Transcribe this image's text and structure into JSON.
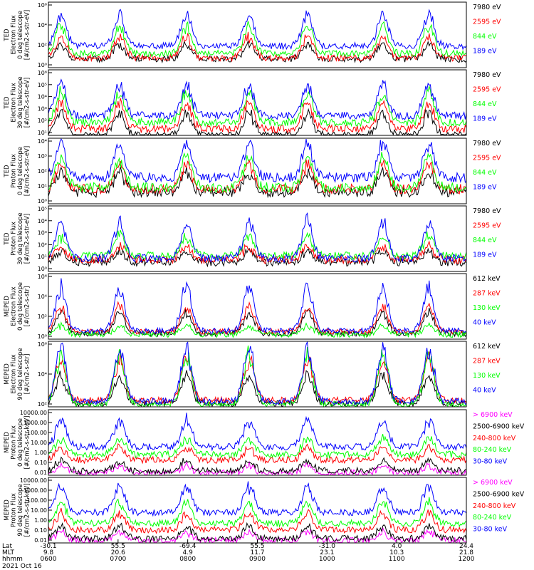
{
  "colors": {
    "black": "#000000",
    "blue": "#0000ff",
    "red": "#ff0000",
    "green": "#00ff00",
    "magenta": "#ff00ff"
  },
  "chart_data": [
    {
      "type": "line",
      "log_scale": true,
      "ylabel": [
        "TED",
        "Electron Flux",
        "0 deg telescope",
        "[#/cm2-s-str-eV]"
      ],
      "ytick_labels": [
        "10⁶",
        "10⁴",
        "10²",
        "10⁰"
      ],
      "ylim_exp": [
        0,
        6
      ],
      "series": [
        {
          "name": "7980 eV",
          "color": "#000000",
          "base": 0.8,
          "peak": 2.2
        },
        {
          "name": "2595 eV",
          "color": "#ff0000",
          "base": 0.9,
          "peak": 3.0
        },
        {
          "name": "844 eV",
          "color": "#00ff00",
          "base": 1.3,
          "peak": 4.0
        },
        {
          "name": "189 eV",
          "color": "#0000ff",
          "base": 2.0,
          "peak": 5.0
        }
      ]
    },
    {
      "type": "line",
      "log_scale": true,
      "ylabel": [
        "TED",
        "Electron Flux",
        "30 deg telescope",
        "[#/cm2-s-str-eV]"
      ],
      "ytick_labels": [
        "10⁶",
        "10⁵",
        "10⁴",
        "10³",
        "10²",
        "10¹"
      ],
      "ylim_exp": [
        1,
        6
      ],
      "series": [
        {
          "name": "7980 eV",
          "color": "#000000",
          "base": 1.0,
          "peak": 2.8
        },
        {
          "name": "2595 eV",
          "color": "#ff0000",
          "base": 1.5,
          "peak": 3.6
        },
        {
          "name": "844 eV",
          "color": "#00ff00",
          "base": 2.0,
          "peak": 4.4
        },
        {
          "name": "189 eV",
          "color": "#0000ff",
          "base": 2.5,
          "peak": 5.0
        }
      ]
    },
    {
      "type": "line",
      "log_scale": true,
      "ylabel": [
        "TED",
        "Proton Flux",
        "0 deg telescope",
        "[#/cm2-s-str-eV]"
      ],
      "ytick_labels": [
        "10⁴",
        "10³",
        "10²",
        "10¹",
        "10⁰"
      ],
      "ylim_exp": [
        0,
        4
      ],
      "series": [
        {
          "name": "7980 eV",
          "color": "#000000",
          "base": 0.7,
          "peak": 2.0
        },
        {
          "name": "2595 eV",
          "color": "#ff0000",
          "base": 0.9,
          "peak": 2.5
        },
        {
          "name": "844 eV",
          "color": "#00ff00",
          "base": 1.0,
          "peak": 3.0
        },
        {
          "name": "189 eV",
          "color": "#0000ff",
          "base": 1.6,
          "peak": 3.8
        }
      ]
    },
    {
      "type": "line",
      "log_scale": true,
      "ylabel": [
        "TED",
        "Proton Flux",
        "30 deg telescope",
        "[#/cm2-s-str-eV]"
      ],
      "ytick_labels": [
        "10⁵",
        "10⁴",
        "10³",
        "10²",
        "10¹",
        "10⁰"
      ],
      "ylim_exp": [
        0,
        5
      ],
      "series": [
        {
          "name": "7980 eV",
          "color": "#000000",
          "base": 0.7,
          "peak": 1.6
        },
        {
          "name": "2595 eV",
          "color": "#ff0000",
          "base": 0.9,
          "peak": 2.0
        },
        {
          "name": "844 eV",
          "color": "#00ff00",
          "base": 1.2,
          "peak": 2.8
        },
        {
          "name": "189 eV",
          "color": "#0000ff",
          "base": 1.0,
          "peak": 4.0
        }
      ]
    },
    {
      "type": "line",
      "log_scale": true,
      "ylabel": [
        "MEPED",
        "Electron Flux",
        "0 deg telescope",
        "[#/cm2-s-str]"
      ],
      "ytick_labels": [
        "10⁶",
        "10⁴",
        "10²",
        "10⁰"
      ],
      "ylim_exp": [
        0,
        7
      ],
      "series": [
        {
          "name": "612 keV",
          "color": "#000000",
          "base": 0.6,
          "peak": 3.0
        },
        {
          "name": "287 keV",
          "color": "#ff0000",
          "base": 0.8,
          "peak": 3.6
        },
        {
          "name": "130 keV",
          "color": "#00ff00",
          "base": 0.5,
          "peak": 1.5
        },
        {
          "name": "40 keV",
          "color": "#0000ff",
          "base": 0.9,
          "peak": 5.8
        }
      ]
    },
    {
      "type": "line",
      "log_scale": true,
      "ylabel": [
        "MEPED",
        "Electron Flux",
        "90 deg telescope",
        "[#/cm2-s-str]"
      ],
      "ytick_labels": [
        "10⁶",
        "10⁴",
        "10²"
      ],
      "ylim_exp": [
        1,
        7
      ],
      "series": [
        {
          "name": "612 keV",
          "color": "#000000",
          "base": 1.3,
          "peak": 4.0
        },
        {
          "name": "287 keV",
          "color": "#ff0000",
          "base": 1.6,
          "peak": 5.5
        },
        {
          "name": "130 keV",
          "color": "#00ff00",
          "base": 1.2,
          "peak": 6.0
        },
        {
          "name": "40 keV",
          "color": "#0000ff",
          "base": 1.5,
          "peak": 6.6
        }
      ]
    },
    {
      "type": "line",
      "log_scale": true,
      "ylabel": [
        "MEPED",
        "Proton Flux",
        "0 deg telescope",
        "[#/cm2-s-str-keV]"
      ],
      "ytick_labels": [
        "10000.00",
        "1000.00",
        "100.00",
        "10.00",
        "1.00",
        "0.10",
        "0.01"
      ],
      "ylim_exp": [
        -2,
        4
      ],
      "series": [
        {
          "name": "> 6900 keV",
          "color": "#ff00ff",
          "base": -1.8,
          "peak": -1.0
        },
        {
          "name": "2500-6900 keV",
          "color": "#000000",
          "base": -1.6,
          "peak": -0.6
        },
        {
          "name": "240-800 keV",
          "color": "#ff0000",
          "base": -0.6,
          "peak": 0.6
        },
        {
          "name": "80-240 keV",
          "color": "#00ff00",
          "base": -0.1,
          "peak": 1.5
        },
        {
          "name": "30-80 keV",
          "color": "#0000ff",
          "base": 0.6,
          "peak": 3.2
        }
      ]
    },
    {
      "type": "line",
      "log_scale": true,
      "ylabel": [
        "MEPED",
        "Proton Flux",
        "90 deg telescope",
        "[#/cm2-s-str-keV]"
      ],
      "ytick_labels": [
        "10000.00",
        "1000.00",
        "100.00",
        "10.00",
        "1.00",
        "0.10",
        "0.01"
      ],
      "ylim_exp": [
        -2,
        4
      ],
      "series": [
        {
          "name": "> 6900 keV",
          "color": "#ff00ff",
          "base": -1.8,
          "peak": -0.9
        },
        {
          "name": "2500-6900 keV",
          "color": "#000000",
          "base": -1.6,
          "peak": -0.4
        },
        {
          "name": "240-800 keV",
          "color": "#ff0000",
          "base": -0.8,
          "peak": 0.8
        },
        {
          "name": "80-240 keV",
          "color": "#00ff00",
          "base": -0.2,
          "peak": 1.8
        },
        {
          "name": "30-80 keV",
          "color": "#0000ff",
          "base": 0.8,
          "peak": 3.3
        }
      ]
    }
  ],
  "x_axis": {
    "row_labels": [
      "Lat",
      "MLT",
      "hhmm",
      "2021 Oct 16"
    ],
    "ticks": [
      {
        "lat": "-30.1",
        "mlt": "9.8",
        "hhmm": "0600"
      },
      {
        "lat": "55.5",
        "mlt": "20.6",
        "hhmm": "0700"
      },
      {
        "lat": "-69.4",
        "mlt": "4.9",
        "hhmm": "0800"
      },
      {
        "lat": "55.5",
        "mlt": "11.7",
        "hhmm": "0900"
      },
      {
        "lat": "-31.0",
        "mlt": "23.1",
        "hhmm": "1000"
      },
      {
        "lat": "4.0",
        "mlt": "10.3",
        "hhmm": "1100"
      },
      {
        "lat": "24.4",
        "mlt": "21.8",
        "hhmm": "1200"
      }
    ]
  },
  "pass_centers": [
    0.03,
    0.17,
    0.33,
    0.48,
    0.62,
    0.8,
    0.91
  ]
}
